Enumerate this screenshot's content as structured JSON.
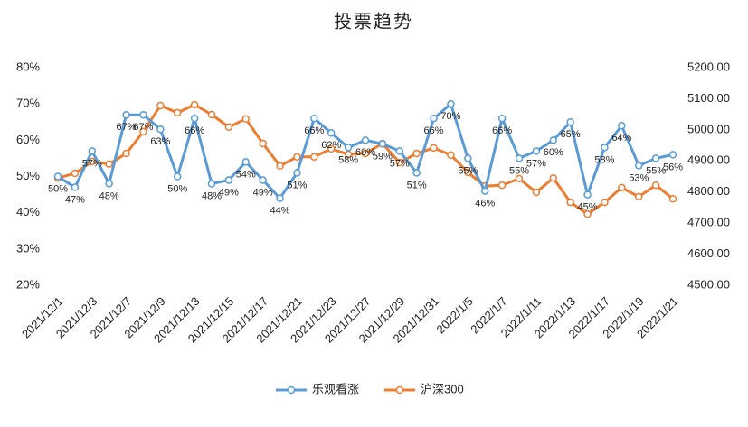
{
  "chart_data": {
    "type": "line",
    "title": "投票趋势",
    "categories": [
      "2021/12/1",
      null,
      "2021/12/3",
      null,
      "2021/12/7",
      null,
      "2021/12/9",
      null,
      "2021/12/13",
      null,
      "2021/12/15",
      null,
      "2021/12/17",
      null,
      "2021/12/21",
      null,
      "2021/12/23",
      null,
      "2021/12/27",
      null,
      "2021/12/29",
      null,
      "2021/12/31",
      null,
      "2022/1/5",
      null,
      "2022/1/7",
      null,
      "2022/1/11",
      null,
      "2022/1/13",
      null,
      "2022/1/17",
      null,
      "2022/1/19",
      null,
      "2022/1/21"
    ],
    "series": [
      {
        "name": "乐观看涨",
        "color": "#5b9bd5",
        "values": [
          50,
          47,
          57,
          48,
          67,
          67,
          63,
          50,
          66,
          48,
          49,
          54,
          49,
          44,
          51,
          66,
          62,
          58,
          60,
          59,
          57,
          51,
          66,
          70,
          55,
          46,
          66,
          55,
          57,
          60,
          65,
          45,
          58,
          64,
          53,
          55,
          56
        ],
        "value_labels": [
          "50%",
          "47%",
          "57%",
          "48%",
          "67%",
          "67%",
          "63%",
          "50%",
          "66%",
          "48%",
          "49%",
          "54%",
          "49%",
          "44%",
          "51%",
          "66%",
          "62%",
          "58%",
          "60%",
          "59%",
          "57%",
          "51%",
          "66%",
          "70%",
          "55%",
          "46%",
          "66%",
          "55%",
          "57%",
          "60%",
          "65%",
          "45%",
          "58%",
          "64%",
          "53%",
          "55%",
          "56%"
        ]
      },
      {
        "name": "沪深300",
        "color": "#ed7d31",
        "axis": "y2",
        "values": [
          4845,
          4860,
          4898,
          4890,
          4924,
          4994,
          5078,
          5055,
          5081,
          5049,
          5009,
          5035,
          4956,
          4884,
          4913,
          4913,
          4939,
          4921,
          4924,
          4956,
          4895,
          4924,
          4942,
          4919,
          4863,
          4819,
          4822,
          4843,
          4799,
          4845,
          4767,
          4729,
          4767,
          4814,
          4785,
          4822,
          4778
        ]
      }
    ],
    "ylim": [
      20,
      80
    ],
    "yticks": [
      {
        "value": 20,
        "label": "20%"
      },
      {
        "value": 30,
        "label": "30%"
      },
      {
        "value": 40,
        "label": "40%"
      },
      {
        "value": 50,
        "label": "50%"
      },
      {
        "value": 60,
        "label": "60%"
      },
      {
        "value": 70,
        "label": "70%"
      },
      {
        "value": 80,
        "label": "80%"
      }
    ],
    "y2lim": [
      4500,
      5200
    ],
    "y2ticks": [
      {
        "value": 4500,
        "label": "4500.00"
      },
      {
        "value": 4600,
        "label": "4600.00"
      },
      {
        "value": 4700,
        "label": "4700.00"
      },
      {
        "value": 4800,
        "label": "4800.00"
      },
      {
        "value": 4900,
        "label": "4900.00"
      },
      {
        "value": 5000,
        "label": "5000.00"
      },
      {
        "value": 5100,
        "label": "5100.00"
      },
      {
        "value": 5200,
        "label": "5200.00"
      }
    ],
    "legend": "bottom"
  }
}
